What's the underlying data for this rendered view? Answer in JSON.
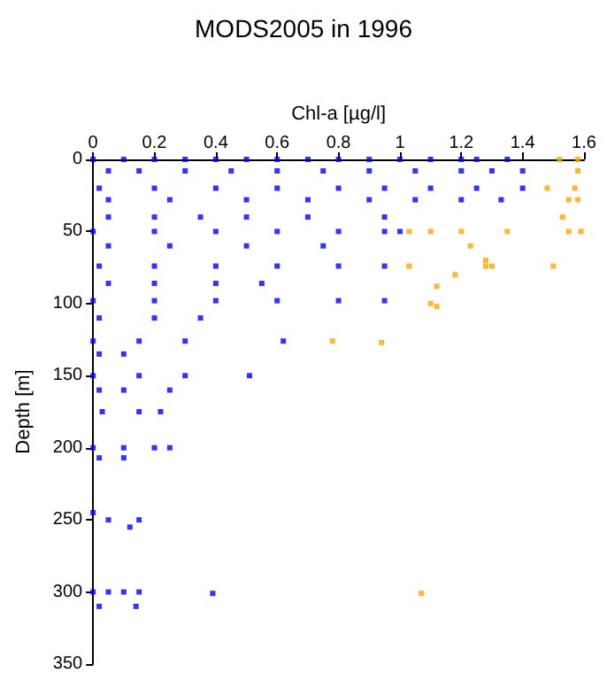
{
  "chart_data": {
    "type": "scatter",
    "title": "MODS2005 in 1996",
    "xlabel": "Chl-a [µg/l]",
    "ylabel": "Depth [m]",
    "xlim": [
      0,
      1.6
    ],
    "xticks": [
      0,
      0.2,
      0.4,
      0.6,
      0.8,
      1,
      1.2,
      1.4,
      1.6
    ],
    "ylim": [
      350,
      0
    ],
    "yticks": [
      0,
      50,
      100,
      150,
      200,
      250,
      300,
      350
    ],
    "grid": false,
    "marker": "square",
    "series": [
      {
        "color": "#0000ff",
        "x": [
          0,
          0.1,
          0.2,
          0.3,
          0.4,
          0.5,
          0.6,
          0.7,
          0.8,
          0.9,
          1.0,
          1.1,
          1.2,
          1.25,
          1.35,
          0.05,
          0.15,
          0.3,
          0.45,
          0.6,
          0.75,
          0.9,
          1.05,
          1.2,
          1.3,
          1.4,
          0.02,
          0.2,
          0.4,
          0.6,
          0.8,
          0.95,
          1.1,
          1.25,
          1.4,
          0.05,
          0.25,
          0.5,
          0.7,
          0.9,
          1.05,
          1.2,
          1.33,
          0.05,
          0.2,
          0.35,
          0.5,
          0.7,
          0.95,
          0,
          0.2,
          0.4,
          0.6,
          0.8,
          0.95,
          1.0,
          0.05,
          0.25,
          0.5,
          0.75,
          0.02,
          0.2,
          0.4,
          0.6,
          0.8,
          0.95,
          0.05,
          0.2,
          0.4,
          0.55,
          0,
          0.2,
          0.4,
          0.6,
          0.8,
          0.95,
          0.02,
          0.2,
          0.35,
          0,
          0.15,
          0.3,
          0.62,
          0.02,
          0.1,
          0,
          0.15,
          0.3,
          0.51,
          0.02,
          0.1,
          0.25,
          0.03,
          0.15,
          0.22,
          0,
          0.1,
          0.2,
          0.25,
          0.02,
          0.1,
          0,
          0.05,
          0.12,
          0.15,
          0,
          0.05,
          0.1,
          0.15,
          0.39,
          0.02,
          0.14
        ],
        "values": [
          0,
          0,
          0,
          0,
          0,
          0,
          0,
          0,
          0,
          0,
          0,
          0,
          0,
          0,
          0,
          8,
          8,
          8,
          8,
          8,
          8,
          8,
          8,
          8,
          8,
          8,
          20,
          20,
          20,
          20,
          20,
          20,
          20,
          20,
          20,
          28,
          28,
          28,
          28,
          28,
          28,
          28,
          28,
          40,
          40,
          40,
          40,
          40,
          40,
          50,
          50,
          50,
          50,
          50,
          50,
          50,
          60,
          60,
          60,
          60,
          74,
          74,
          74,
          74,
          74,
          74,
          86,
          86,
          86,
          86,
          98,
          98,
          98,
          98,
          98,
          98,
          110,
          110,
          110,
          126,
          126,
          126,
          126,
          135,
          135,
          150,
          150,
          150,
          150,
          160,
          160,
          160,
          175,
          175,
          175,
          200,
          200,
          200,
          200,
          207,
          207,
          245,
          250,
          255,
          250,
          300,
          300,
          300,
          300,
          301,
          310,
          310
        ]
      },
      {
        "color": "#ffa500",
        "x": [
          1.52,
          1.58,
          1.58,
          1.57,
          1.48,
          1.55,
          1.58,
          1.53,
          1.03,
          1.1,
          1.2,
          1.35,
          1.55,
          1.59,
          1.23,
          1.28,
          1.03,
          1.28,
          1.3,
          1.5,
          1.18,
          1.12,
          1.12,
          1.1,
          0.78,
          0.94,
          1.07
        ],
        "values": [
          0,
          0,
          8,
          20,
          20,
          28,
          28,
          40,
          50,
          50,
          50,
          50,
          50,
          50,
          60,
          70,
          74,
          74,
          74,
          74,
          80,
          88,
          102,
          100,
          126,
          127,
          301
        ]
      }
    ]
  }
}
